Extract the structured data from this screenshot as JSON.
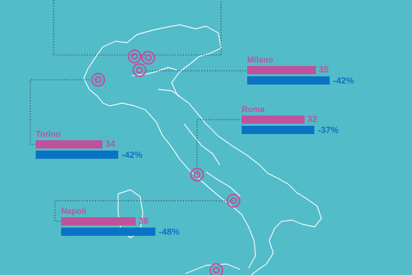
{
  "cities": [
    {
      "name": "Milano",
      "value": 35,
      "change": {
        "value": -42,
        "label": "-42%"
      }
    },
    {
      "name": "Roma",
      "value": 32,
      "change": {
        "value": -37,
        "label": "-37%"
      }
    },
    {
      "name": "Torino",
      "value": 34,
      "change": {
        "value": -42,
        "label": "-42%"
      }
    },
    {
      "name": "Napoli",
      "value": 38,
      "change": {
        "value": -48,
        "label": "-48%"
      }
    }
  ]
}
